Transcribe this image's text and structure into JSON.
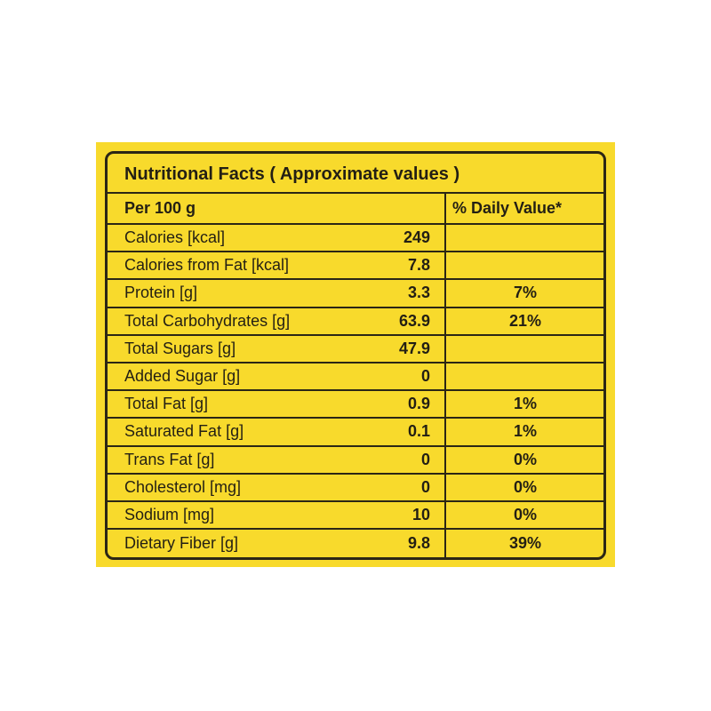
{
  "title": "Nutritional Facts ( Approximate values )",
  "header": {
    "basis": "Per 100 g",
    "daily": "% Daily Value*"
  },
  "rows": [
    {
      "label": "Calories [kcal]",
      "amount": "249"
    },
    {
      "label": "Calories from Fat [kcal]",
      "amount": "7.8"
    },
    {
      "label": "Protein [g]",
      "amount": "3.3",
      "daily": "7%"
    },
    {
      "label": "Total Carbohydrates [g]",
      "amount": "63.9",
      "daily": "21%"
    },
    {
      "label": "Total Sugars [g]",
      "amount": "47.9"
    },
    {
      "label": "Added Sugar [g]",
      "amount": "0"
    },
    {
      "label": "Total Fat [g]",
      "amount": "0.9",
      "daily": "1%"
    },
    {
      "label": "Saturated Fat [g]",
      "amount": "0.1",
      "daily": "1%"
    },
    {
      "label": "Trans Fat [g]",
      "amount": "0",
      "daily": "0%"
    },
    {
      "label": "Cholesterol [mg]",
      "amount": "0",
      "daily": "0%"
    },
    {
      "label": "Sodium [mg]",
      "amount": "10",
      "daily": "0%"
    },
    {
      "label": "Dietary Fiber [g]",
      "amount": "9.8",
      "daily": "39%"
    }
  ]
}
